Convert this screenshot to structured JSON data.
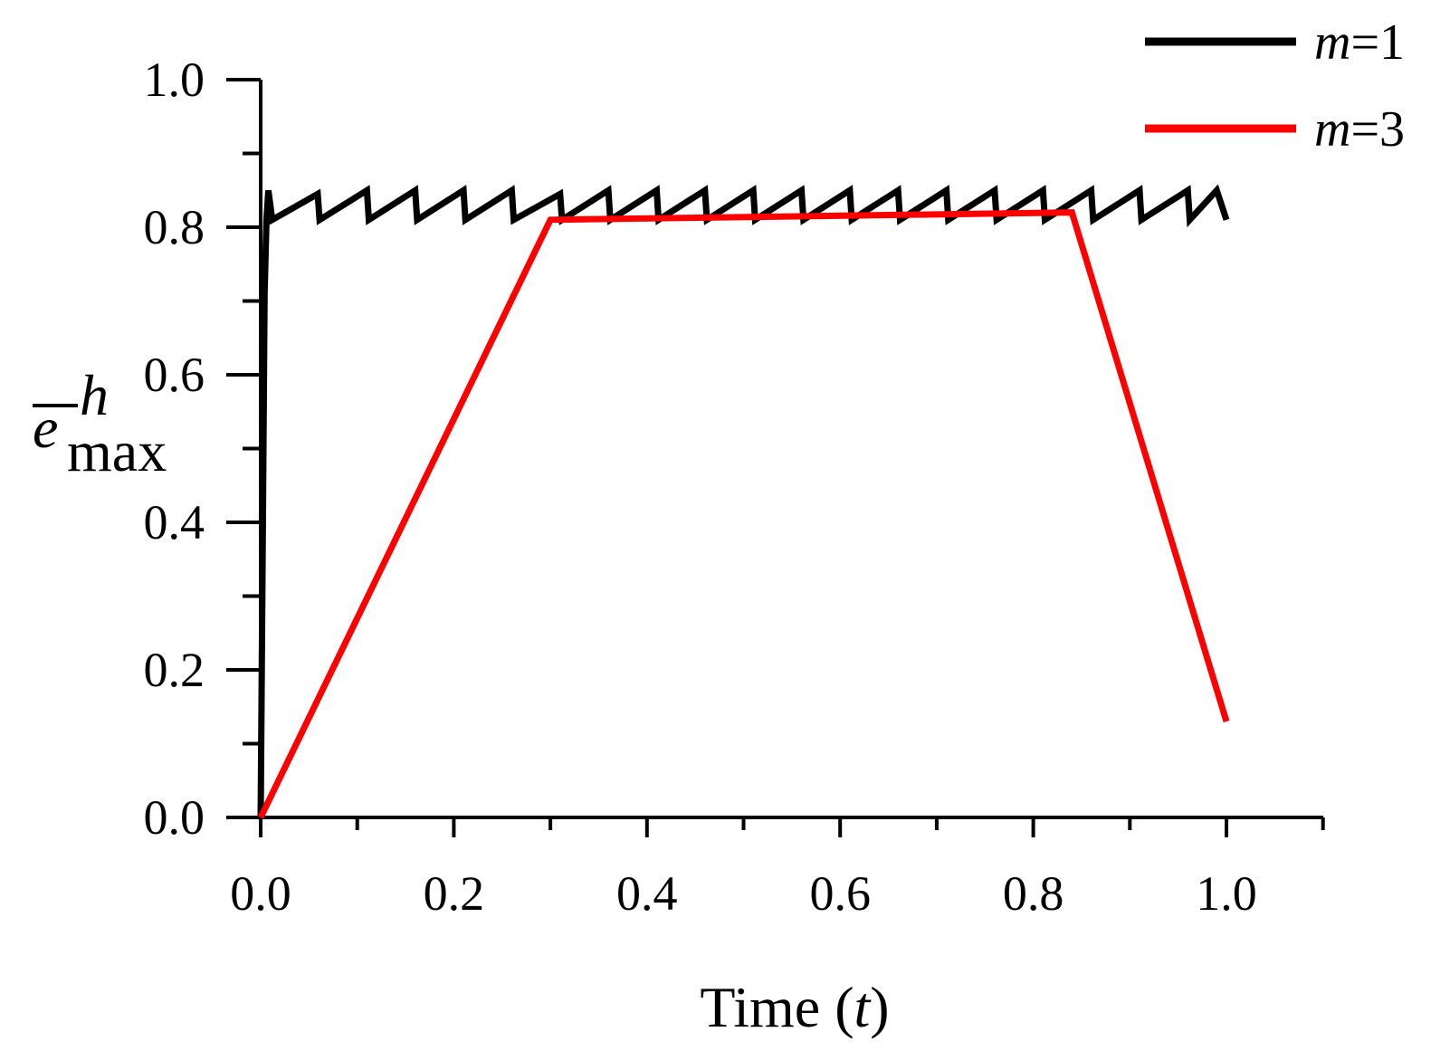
{
  "chart_data": {
    "type": "line",
    "title": "",
    "xlabel": {
      "text": "Time (",
      "var": "t",
      "close": ")"
    },
    "ylabel": {
      "var": "e",
      "superscript": "h",
      "subscript": "max"
    },
    "xlim": [
      0,
      1.1
    ],
    "ylim": [
      0,
      1.0
    ],
    "x_ticks": [
      0.0,
      0.2,
      0.4,
      0.6,
      0.8,
      1.0
    ],
    "x_tick_labels": [
      "0.0",
      "0.2",
      "0.4",
      "0.6",
      "0.8",
      "1.0"
    ],
    "y_ticks": [
      0.0,
      0.2,
      0.4,
      0.6,
      0.8,
      1.0
    ],
    "y_tick_labels": [
      "0.0",
      "0.2",
      "0.4",
      "0.6",
      "0.8",
      "1.0"
    ],
    "grid": false,
    "legend_position": "top-right",
    "series": [
      {
        "name": "m=1",
        "label_var": "m",
        "label_rest": "=1",
        "color": "#000000",
        "x": [
          0.0,
          0.004,
          0.006,
          0.008,
          0.012,
          0.059,
          0.061,
          0.11,
          0.112,
          0.16,
          0.162,
          0.21,
          0.212,
          0.26,
          0.262,
          0.31,
          0.312,
          0.36,
          0.362,
          0.41,
          0.412,
          0.46,
          0.462,
          0.51,
          0.512,
          0.56,
          0.562,
          0.61,
          0.612,
          0.66,
          0.662,
          0.71,
          0.712,
          0.76,
          0.762,
          0.81,
          0.812,
          0.86,
          0.862,
          0.91,
          0.912,
          0.96,
          0.962,
          0.99,
          1.0
        ],
        "y": [
          0.0,
          0.71,
          0.81,
          0.85,
          0.81,
          0.845,
          0.81,
          0.85,
          0.81,
          0.85,
          0.81,
          0.85,
          0.81,
          0.85,
          0.81,
          0.845,
          0.81,
          0.85,
          0.81,
          0.85,
          0.81,
          0.85,
          0.81,
          0.85,
          0.81,
          0.85,
          0.81,
          0.85,
          0.81,
          0.85,
          0.81,
          0.85,
          0.81,
          0.85,
          0.81,
          0.85,
          0.81,
          0.85,
          0.81,
          0.85,
          0.81,
          0.85,
          0.81,
          0.85,
          0.81
        ]
      },
      {
        "name": "m=3",
        "label_var": "m",
        "label_rest": "=3",
        "color": "#ff0000",
        "x": [
          0.0,
          0.3,
          0.84,
          1.0
        ],
        "y": [
          0.0,
          0.81,
          0.82,
          0.13
        ]
      }
    ]
  }
}
